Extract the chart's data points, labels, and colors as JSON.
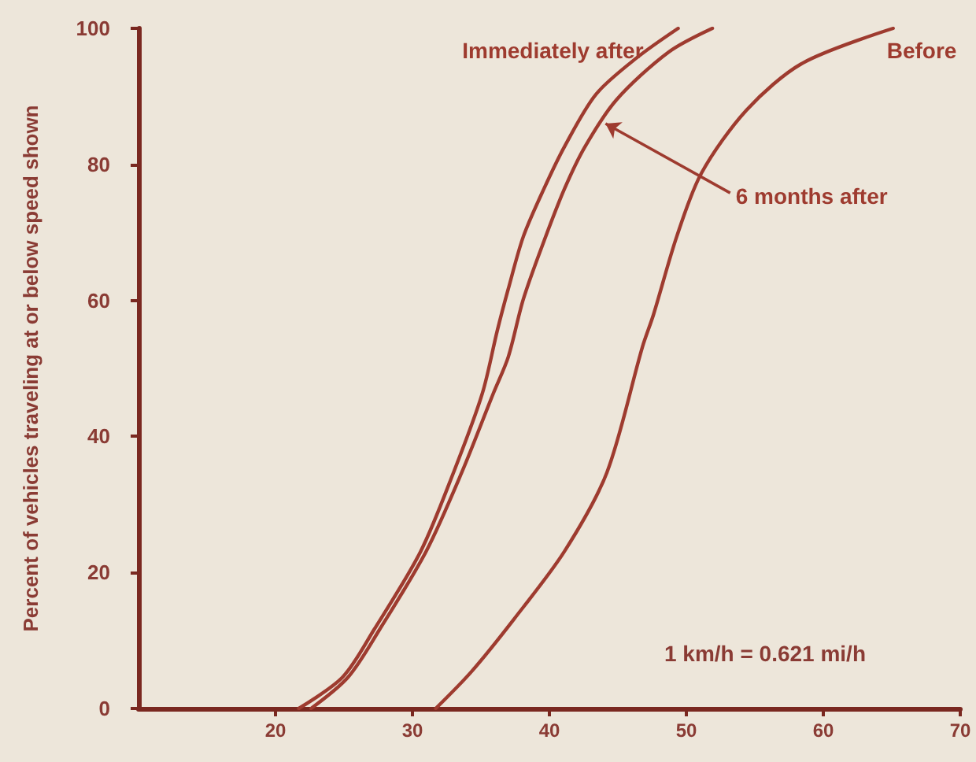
{
  "chart_data": {
    "type": "line",
    "ylabel": "Percent of vehicles traveling at or below speed shown",
    "annotations": [
      "1 km/h = 0.621 mi/h"
    ],
    "xlim": [
      10,
      70
    ],
    "xticks": [
      20,
      30,
      40,
      50,
      60,
      70
    ],
    "ylim": [
      0,
      100
    ],
    "yticks": [
      0,
      20,
      40,
      60,
      80,
      100
    ],
    "grid": false,
    "marker": "none",
    "line_style": "solid",
    "series": [
      {
        "name": "Immediately after",
        "color": "#9e3b2f",
        "x": [
          21.7,
          24.9,
          27.2,
          30.6,
          33.0,
          35.1,
          36.2,
          37.0,
          38.1,
          39.6,
          41.1,
          43.4,
          46.4,
          49.4
        ],
        "values": [
          0,
          4.6,
          11.6,
          23.1,
          34.7,
          46.3,
          55.6,
          61.7,
          69.4,
          76.4,
          82.6,
          90.3,
          95.7,
          100
        ]
      },
      {
        "name": "6 months after",
        "color": "#9e3b2f",
        "x": [
          22.6,
          25.3,
          27.6,
          31.0,
          33.6,
          35.9,
          37.0,
          38.1,
          39.6,
          41.1,
          42.6,
          44.9,
          48.7,
          51.9
        ],
        "values": [
          0,
          4.6,
          11.6,
          23.1,
          34.7,
          46.3,
          51.7,
          60.2,
          68.7,
          76.4,
          82.6,
          89.5,
          96.5,
          100
        ]
      },
      {
        "name": "Before",
        "color": "#9e3b2f",
        "x": [
          31.7,
          34.3,
          37.4,
          41.1,
          44.2,
          46.8,
          47.6,
          49.3,
          51.1,
          54.4,
          58.5,
          65.1
        ],
        "values": [
          0,
          5.4,
          13.1,
          23.1,
          34.7,
          53.2,
          57.9,
          69.4,
          78.7,
          88.0,
          94.9,
          100
        ]
      }
    ]
  }
}
